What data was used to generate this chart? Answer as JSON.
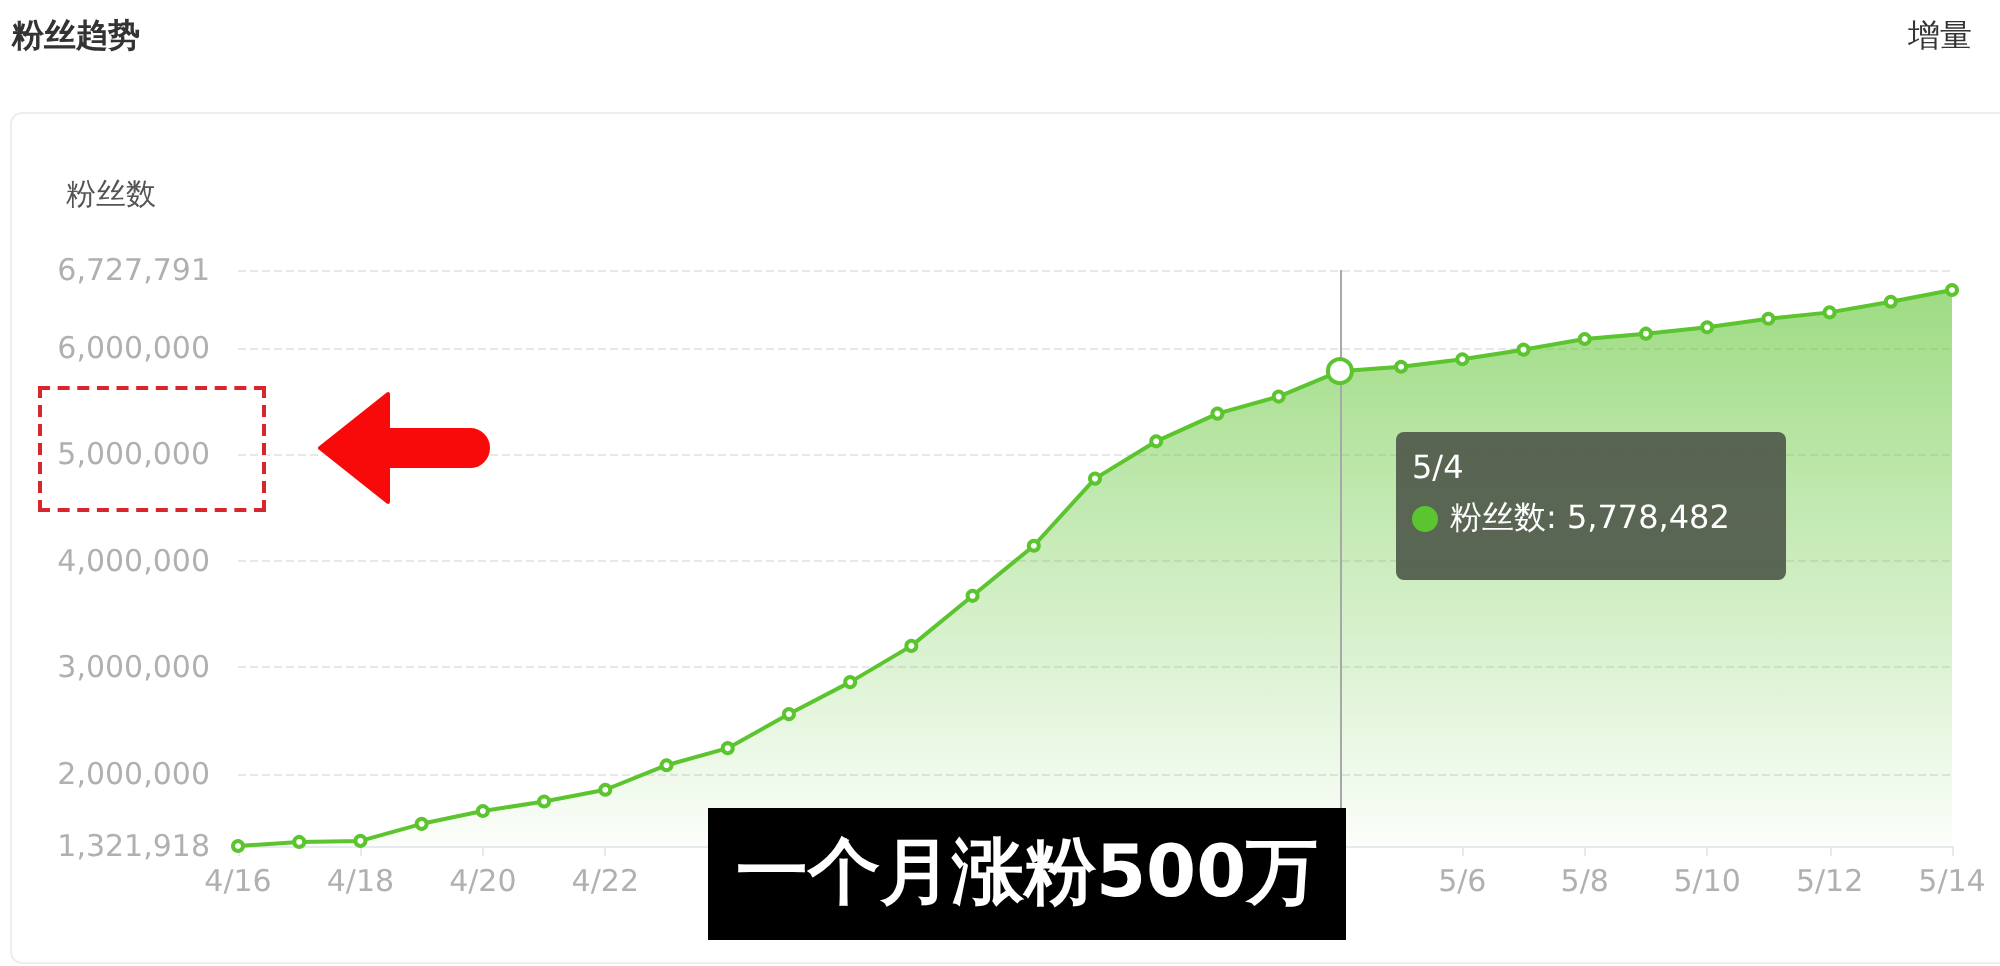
{
  "chart_data": {
    "type": "area",
    "title": "粉丝趋势",
    "ylabel": "粉丝数",
    "x": [
      "--04-16",
      "--04-17",
      "--04-18",
      "--04-19",
      "--04-20",
      "--04-21",
      "--04-22",
      "--04-23",
      "--04-24",
      "--04-25",
      "--04-26",
      "--04-27",
      "--04-28",
      "--04-29",
      "--04-30",
      "--05-01",
      "--05-02",
      "--05-03",
      "--05-04",
      "--05-05",
      "--05-06",
      "--05-07",
      "--05-08",
      "--05-09",
      "--05-10",
      "--05-11",
      "--05-12",
      "--05-13",
      "--05-14"
    ],
    "series": [
      {
        "color": "#5cc42f",
        "values": [
          1321918,
          1360000,
          1370000,
          1530000,
          1650000,
          1740000,
          1850000,
          2080000,
          2240000,
          2560000,
          2860000,
          3200000,
          3670000,
          4140000,
          4770000,
          5120000,
          5380000,
          5540000,
          5778482,
          5820000,
          5890000,
          5980000,
          6080000,
          6130000,
          6190000,
          6270000,
          6330000,
          6430000,
          6540000
        ]
      }
    ],
    "xlim": [
      "--04-16",
      "--05-14"
    ],
    "xticks": [
      {
        "value": "--04-16",
        "label": "4/16"
      },
      {
        "value": "--04-18",
        "label": "4/18"
      },
      {
        "value": "--04-20",
        "label": "4/20"
      },
      {
        "value": "--04-22",
        "label": "4/22"
      },
      {
        "value": "--04-24",
        "label": null
      },
      {
        "value": "--04-26",
        "label": null
      },
      {
        "value": "--04-28",
        "label": null
      },
      {
        "value": "--04-30",
        "label": null
      },
      {
        "value": "--05-02",
        "label": null
      },
      {
        "value": "--05-04",
        "label": null
      },
      {
        "value": "--05-06",
        "label": "5/6"
      },
      {
        "value": "--05-08",
        "label": "5/8"
      },
      {
        "value": "--05-10",
        "label": "5/10"
      },
      {
        "value": "--05-12",
        "label": "5/12"
      },
      {
        "value": "--05-14",
        "label": "5/14"
      }
    ],
    "ylim": [
      1321918,
      6727791
    ],
    "yticks": [
      {
        "value": 1321918,
        "label": "1,321,918"
      },
      {
        "value": 2000000,
        "label": "2,000,000"
      },
      {
        "value": 3000000,
        "label": "3,000,000"
      },
      {
        "value": 4000000,
        "label": "4,000,000"
      },
      {
        "value": 5000000,
        "label": "5,000,000"
      },
      {
        "value": 6000000,
        "label": "6,000,000"
      },
      {
        "value": 6727791,
        "label": "6,727,791"
      }
    ],
    "grid": "y",
    "marker": "circle",
    "line_style": "solid",
    "ref_lines": [
      {
        "axis": "x",
        "value": "--05-04",
        "color": "#a8a8a8"
      }
    ],
    "annotations": [
      "5/4",
      "粉丝数: 5,778,482",
      "一个月涨粉500万",
      "增量"
    ]
  }
}
